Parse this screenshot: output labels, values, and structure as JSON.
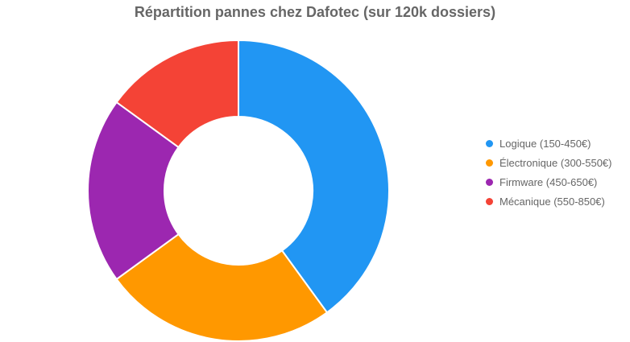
{
  "chart_data": {
    "type": "pie",
    "variant": "donut",
    "title": "Répartition pannes chez Dafotec (sur 120k dossiers)",
    "unit": "percent (estimated, no labels shown)",
    "categories": [
      "Logique (150-450€)",
      "Électronique (300-550€)",
      "Firmware (450-650€)",
      "Mécanique (550-850€)"
    ],
    "values": [
      40,
      25,
      20,
      15
    ],
    "colors": [
      "#2196F3",
      "#FF9800",
      "#9C27B0",
      "#F44336"
    ],
    "legend_position": "right"
  }
}
